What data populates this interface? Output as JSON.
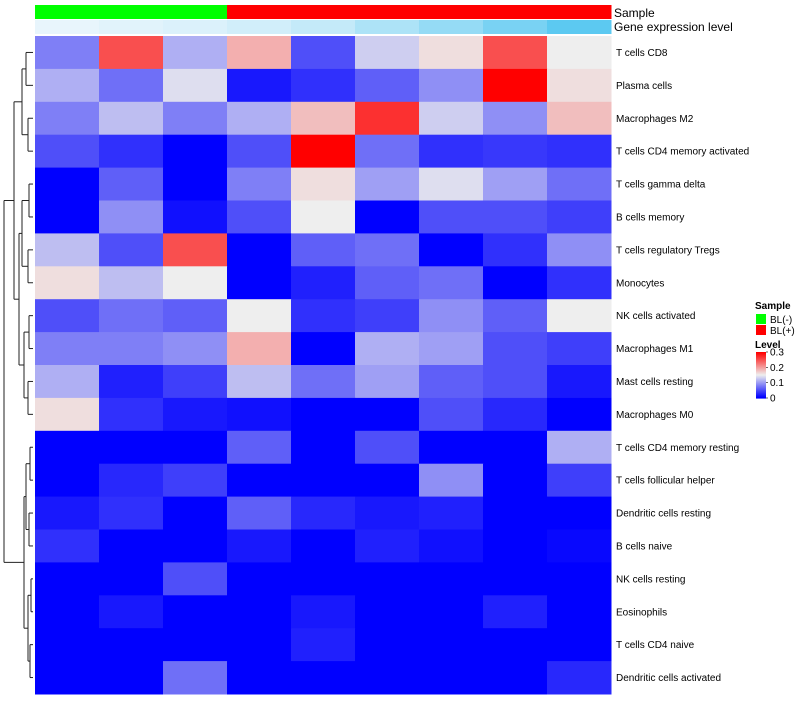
{
  "chart_data": {
    "type": "heatmap",
    "title": "",
    "annotation_labels": {
      "sample": "Sample",
      "gene_expression": "Gene expression level"
    },
    "samples": {
      "groups": [
        "BL(-)",
        "BL(-)",
        "BL(-)",
        "BL(+)",
        "BL(+)",
        "BL(+)",
        "BL(+)",
        "BL(+)",
        "BL(+)"
      ],
      "gene_expression_levels": [
        0.04,
        0.08,
        0.12,
        0.18,
        0.26,
        0.4,
        0.55,
        0.72,
        0.9
      ]
    },
    "rows": [
      "T cells CD8",
      "Plasma cells",
      "Macrophages M2",
      "T cells CD4 memory activated",
      "T cells gamma delta",
      "B cells memory",
      "T cells regulatory  Tregs",
      "Monocytes",
      "NK cells activated",
      "Macrophages M1",
      "Mast cells resting",
      "Macrophages M0",
      "T cells CD4 memory resting",
      "T cells follicular helper",
      "Dendritic cells resting",
      "B cells naive",
      "NK cells resting",
      "Eosinophils",
      "T cells CD4 naive",
      "Dendritic cells activated"
    ],
    "values": [
      [
        0.08,
        0.25,
        0.11,
        0.19,
        0.05,
        0.13,
        0.16,
        0.25,
        0.15
      ],
      [
        0.11,
        0.07,
        0.14,
        0.015,
        0.03,
        0.06,
        0.09,
        0.3,
        0.16
      ],
      [
        0.08,
        0.12,
        0.08,
        0.11,
        0.18,
        0.27,
        0.13,
        0.09,
        0.18
      ],
      [
        0.05,
        0.03,
        0.0,
        0.05,
        0.3,
        0.07,
        0.03,
        0.035,
        0.03
      ],
      [
        0.0,
        0.06,
        0.0,
        0.08,
        0.16,
        0.1,
        0.14,
        0.1,
        0.07
      ],
      [
        0.0,
        0.09,
        0.01,
        0.05,
        0.15,
        0.0,
        0.05,
        0.05,
        0.04
      ],
      [
        0.12,
        0.05,
        0.25,
        0.0,
        0.06,
        0.07,
        0.0,
        0.03,
        0.09
      ],
      [
        0.16,
        0.12,
        0.15,
        0.0,
        0.02,
        0.06,
        0.07,
        0.0,
        0.03
      ],
      [
        0.05,
        0.07,
        0.06,
        0.15,
        0.03,
        0.04,
        0.09,
        0.06,
        0.15
      ],
      [
        0.08,
        0.08,
        0.09,
        0.19,
        0.0,
        0.11,
        0.1,
        0.05,
        0.04
      ],
      [
        0.11,
        0.02,
        0.04,
        0.12,
        0.07,
        0.1,
        0.06,
        0.05,
        0.015
      ],
      [
        0.16,
        0.03,
        0.015,
        0.01,
        0.0,
        0.0,
        0.05,
        0.025,
        0.0
      ],
      [
        0.0,
        0.0,
        0.0,
        0.06,
        0.0,
        0.05,
        0.0,
        0.0,
        0.11
      ],
      [
        0.0,
        0.025,
        0.04,
        0.0,
        0.0,
        0.0,
        0.09,
        0.0,
        0.04
      ],
      [
        0.015,
        0.03,
        0.0,
        0.06,
        0.025,
        0.015,
        0.02,
        0.0,
        0.0
      ],
      [
        0.03,
        0.0,
        0.0,
        0.015,
        0.0,
        0.02,
        0.01,
        0.0,
        0.005
      ],
      [
        0.0,
        0.0,
        0.05,
        0.0,
        0.0,
        0.0,
        0.0,
        0.0,
        0.0
      ],
      [
        0.0,
        0.015,
        0.0,
        0.0,
        0.015,
        0.0,
        0.0,
        0.02,
        0.0
      ],
      [
        0.0,
        0.0,
        0.0,
        0.0,
        0.02,
        0.0,
        0.0,
        0.0,
        0.0
      ],
      [
        0.0,
        0.0,
        0.07,
        0.0,
        0.0,
        0.0,
        0.0,
        0.0,
        0.025
      ]
    ],
    "color_scale": {
      "min": 0,
      "max": 0.3,
      "low": "#0000ff",
      "mid": "#eeeeee",
      "mid_value": 0.15,
      "high": "#ff0000"
    },
    "legend": {
      "position": "right",
      "sample_title": "Sample",
      "sample_items": [
        {
          "label": "BL(-)",
          "color": "#00ff00"
        },
        {
          "label": "BL(+)",
          "color": "#ff0000"
        }
      ],
      "level_title": "Level",
      "level_ticks": [
        "0.3",
        "0.2",
        "0.1",
        "0"
      ],
      "level_tick_values": [
        0.3,
        0.2,
        0.1,
        0
      ]
    },
    "gene_expression_gradient": {
      "low": "#eef7fc",
      "high": "#4cc4f0"
    },
    "row_dendrogram": true
  }
}
